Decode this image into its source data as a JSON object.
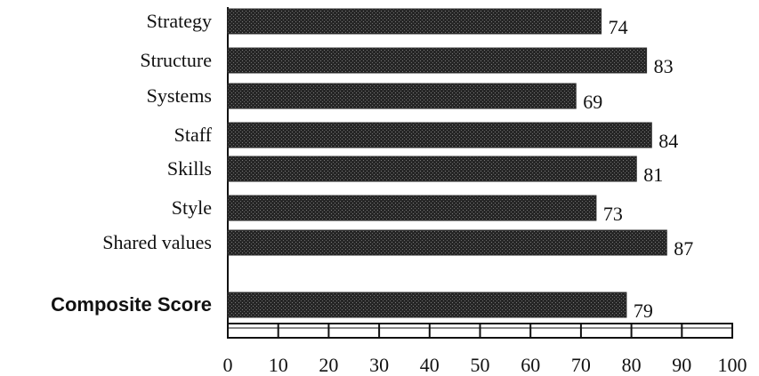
{
  "chart_data": {
    "type": "bar",
    "orientation": "horizontal",
    "categories": [
      "Strategy",
      "Structure",
      "Systems",
      "Staff",
      "Skills",
      "Style",
      "Shared values",
      "Composite Score"
    ],
    "values": [
      74,
      83,
      69,
      84,
      81,
      73,
      87,
      79
    ],
    "value_labels": [
      "74",
      "83",
      "69",
      "84",
      "81",
      "73",
      "87",
      "79"
    ],
    "emphasized_category": "Composite Score",
    "xlim": [
      0,
      100
    ],
    "x_ticks": [
      0,
      10,
      20,
      30,
      40,
      50,
      60,
      70,
      80,
      90,
      100
    ],
    "x_tick_labels": [
      "0",
      "10",
      "20",
      "30",
      "40",
      "50",
      "60",
      "70",
      "80",
      "90",
      "100"
    ],
    "bar_fill": "#2b2b2b",
    "grid": false,
    "legend": "none"
  }
}
